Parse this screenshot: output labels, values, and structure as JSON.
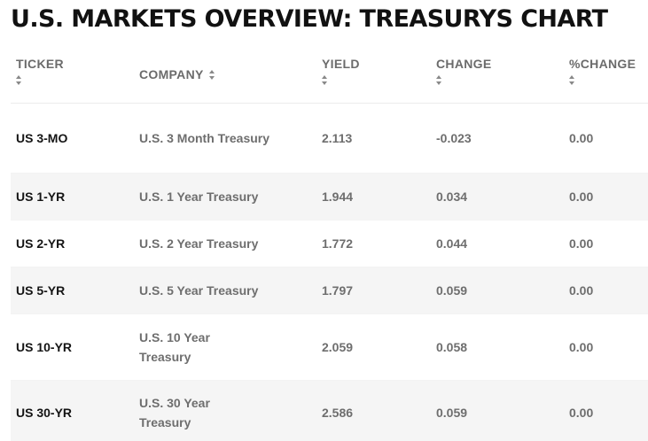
{
  "page": {
    "title": "U.S. MARKETS OVERVIEW: TREASURYS CHART"
  },
  "table": {
    "headers": {
      "ticker": "TICKER",
      "company": "COMPANY",
      "yield": "YIELD",
      "change": "CHANGE",
      "pct_change": "%CHANGE"
    },
    "rows": [
      {
        "ticker": "US 3-MO",
        "company": "U.S. 3 Month Treasury",
        "yield": "2.113",
        "change": "-0.023",
        "pct_change": "0.00"
      },
      {
        "ticker": "US 1-YR",
        "company": "U.S. 1 Year Treasury",
        "yield": "1.944",
        "change": "0.034",
        "pct_change": "0.00"
      },
      {
        "ticker": "US 2-YR",
        "company": "U.S. 2 Year Treasury",
        "yield": "1.772",
        "change": "0.044",
        "pct_change": "0.00"
      },
      {
        "ticker": "US 5-YR",
        "company": "U.S. 5 Year Treasury",
        "yield": "1.797",
        "change": "0.059",
        "pct_change": "0.00"
      },
      {
        "ticker": "US 10-YR",
        "company": "U.S. 10 Year Treasury",
        "yield": "2.059",
        "change": "0.058",
        "pct_change": "0.00"
      },
      {
        "ticker": "US 30-YR",
        "company": "U.S. 30 Year Treasury",
        "yield": "2.586",
        "change": "0.059",
        "pct_change": "0.00"
      }
    ]
  },
  "icons": {
    "sort": "sort-arrows-icon"
  },
  "colors": {
    "row_shade": "#f5f5f5",
    "header_text": "#6b6b6b",
    "ticker_text": "#141414"
  }
}
